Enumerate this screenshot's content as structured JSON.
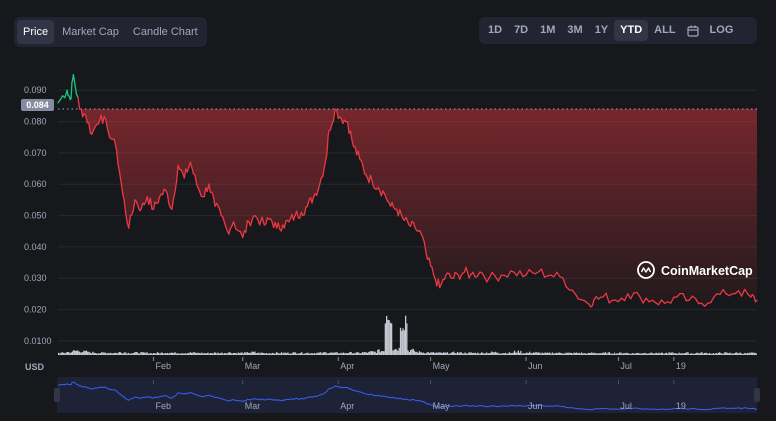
{
  "view_tabs": [
    {
      "label": "Price",
      "active": true
    },
    {
      "label": "Market Cap",
      "active": false
    },
    {
      "label": "Candle Chart",
      "active": false
    }
  ],
  "range_buttons": [
    {
      "label": "1D",
      "active": false
    },
    {
      "label": "7D",
      "active": false
    },
    {
      "label": "1M",
      "active": false
    },
    {
      "label": "3M",
      "active": false
    },
    {
      "label": "1Y",
      "active": false
    },
    {
      "label": "YTD",
      "active": true
    },
    {
      "label": "ALL",
      "active": false
    }
  ],
  "calendar_icon": "calendar-icon",
  "log_label": "LOG",
  "watermark": "CoinMarketCap",
  "currency_label": "USD",
  "current_price_label": "0.084",
  "colors": {
    "up": "#16c784",
    "down": "#ea3943",
    "volume": "#c8cbd4",
    "nav_line": "#3861fb"
  },
  "chart_data": {
    "type": "line",
    "yticks": [
      "0.090",
      "0.080",
      "0.070",
      "0.060",
      "0.050",
      "0.040",
      "0.030",
      "0.020",
      "0.0100"
    ],
    "ylim": [
      0.0055,
      0.0955
    ],
    "xticks": [
      "Feb",
      "Mar",
      "Apr",
      "May",
      "Jun",
      "Jul",
      "19"
    ],
    "baseline": 0.084,
    "series": [
      {
        "x": [
          "Jan 01",
          "Jan 04",
          "Jan 05",
          "Jan 06",
          "Jan 08",
          "Jan 10",
          "Jan 12",
          "Jan 15",
          "Jan 17",
          "Jan 20",
          "Jan 22",
          "Jan 24",
          "Jan 26",
          "Jan 28",
          "Jan 30",
          "Feb 01",
          "Feb 03",
          "Feb 05",
          "Feb 07",
          "Feb 09",
          "Feb 11",
          "Feb 13",
          "Feb 15",
          "Feb 17",
          "Feb 19",
          "Feb 21",
          "Feb 23",
          "Feb 25",
          "Feb 27",
          "Mar 01",
          "Mar 03",
          "Mar 05",
          "Mar 08",
          "Mar 10",
          "Mar 12",
          "Mar 14",
          "Mar 16",
          "Mar 18",
          "Mar 20",
          "Mar 22",
          "Mar 24",
          "Mar 26",
          "Mar 28",
          "Mar 29",
          "Mar 31",
          "Apr 02",
          "Apr 04",
          "Apr 06",
          "Apr 08",
          "Apr 10",
          "Apr 12",
          "Apr 14",
          "Apr 16",
          "Apr 18",
          "Apr 20",
          "Apr 22",
          "Apr 24",
          "Apr 26",
          "Apr 28",
          "Apr 30",
          "May 02",
          "May 04",
          "May 06",
          "May 08",
          "May 10",
          "May 12",
          "May 14",
          "May 17",
          "May 20",
          "May 24",
          "May 28",
          "Jun 01",
          "Jun 05",
          "Jun 09",
          "Jun 13",
          "Jun 17",
          "Jun 21",
          "Jun 23",
          "Jun 26",
          "Jun 30",
          "Jul 04",
          "Jul 08",
          "Jul 12",
          "Jul 16",
          "Jul 20",
          "Jul 24",
          "Jul 28",
          "Aug 01",
          "Aug 05",
          "Aug 09",
          "Aug 13",
          "Aug 15"
        ],
        "y": [
          0.086,
          0.09,
          0.087,
          0.095,
          0.084,
          0.082,
          0.076,
          0.082,
          0.078,
          0.071,
          0.057,
          0.046,
          0.055,
          0.052,
          0.056,
          0.052,
          0.056,
          0.058,
          0.052,
          0.066,
          0.062,
          0.067,
          0.06,
          0.056,
          0.06,
          0.053,
          0.05,
          0.045,
          0.048,
          0.043,
          0.048,
          0.05,
          0.047,
          0.049,
          0.046,
          0.047,
          0.048,
          0.05,
          0.051,
          0.053,
          0.056,
          0.06,
          0.068,
          0.077,
          0.084,
          0.081,
          0.08,
          0.072,
          0.068,
          0.063,
          0.061,
          0.059,
          0.057,
          0.053,
          0.052,
          0.049,
          0.047,
          0.046,
          0.044,
          0.036,
          0.031,
          0.027,
          0.031,
          0.03,
          0.031,
          0.032,
          0.031,
          0.032,
          0.03,
          0.031,
          0.032,
          0.031,
          0.032,
          0.031,
          0.03,
          0.025,
          0.022,
          0.023,
          0.024,
          0.023,
          0.025,
          0.024,
          0.023,
          0.022,
          0.024,
          0.023,
          0.022,
          0.024,
          0.025,
          0.026,
          0.024,
          0.023
        ]
      }
    ],
    "volume": [
      1,
      1.4,
      2,
      1.6,
      1.2,
      1,
      1.1,
      1,
      1.3,
      1,
      1.1,
      1,
      0.9,
      1,
      1.2,
      1,
      1,
      1.1,
      1,
      0.9,
      1,
      1,
      1.2,
      1,
      1,
      1.3,
      1,
      0.9,
      1,
      1,
      1,
      1.1,
      1,
      1,
      1,
      1.2,
      1,
      1,
      1.1,
      1,
      1.2,
      1.5,
      2,
      6,
      3,
      5,
      2.2,
      1.4,
      1.2,
      1.1,
      1,
      1,
      1.2,
      1,
      1,
      1,
      1.1,
      1.3,
      1,
      1,
      1.6,
      1,
      1.2,
      1,
      0.9,
      1,
      1,
      0.9,
      1,
      0.8,
      1,
      0.9,
      1,
      0.9,
      1,
      0.8,
      0.9,
      1,
      0.9,
      0.8,
      1,
      0.9,
      1,
      0.8,
      1,
      0.9,
      0.8,
      1,
      0.9,
      1,
      0.8,
      0.9
    ]
  }
}
